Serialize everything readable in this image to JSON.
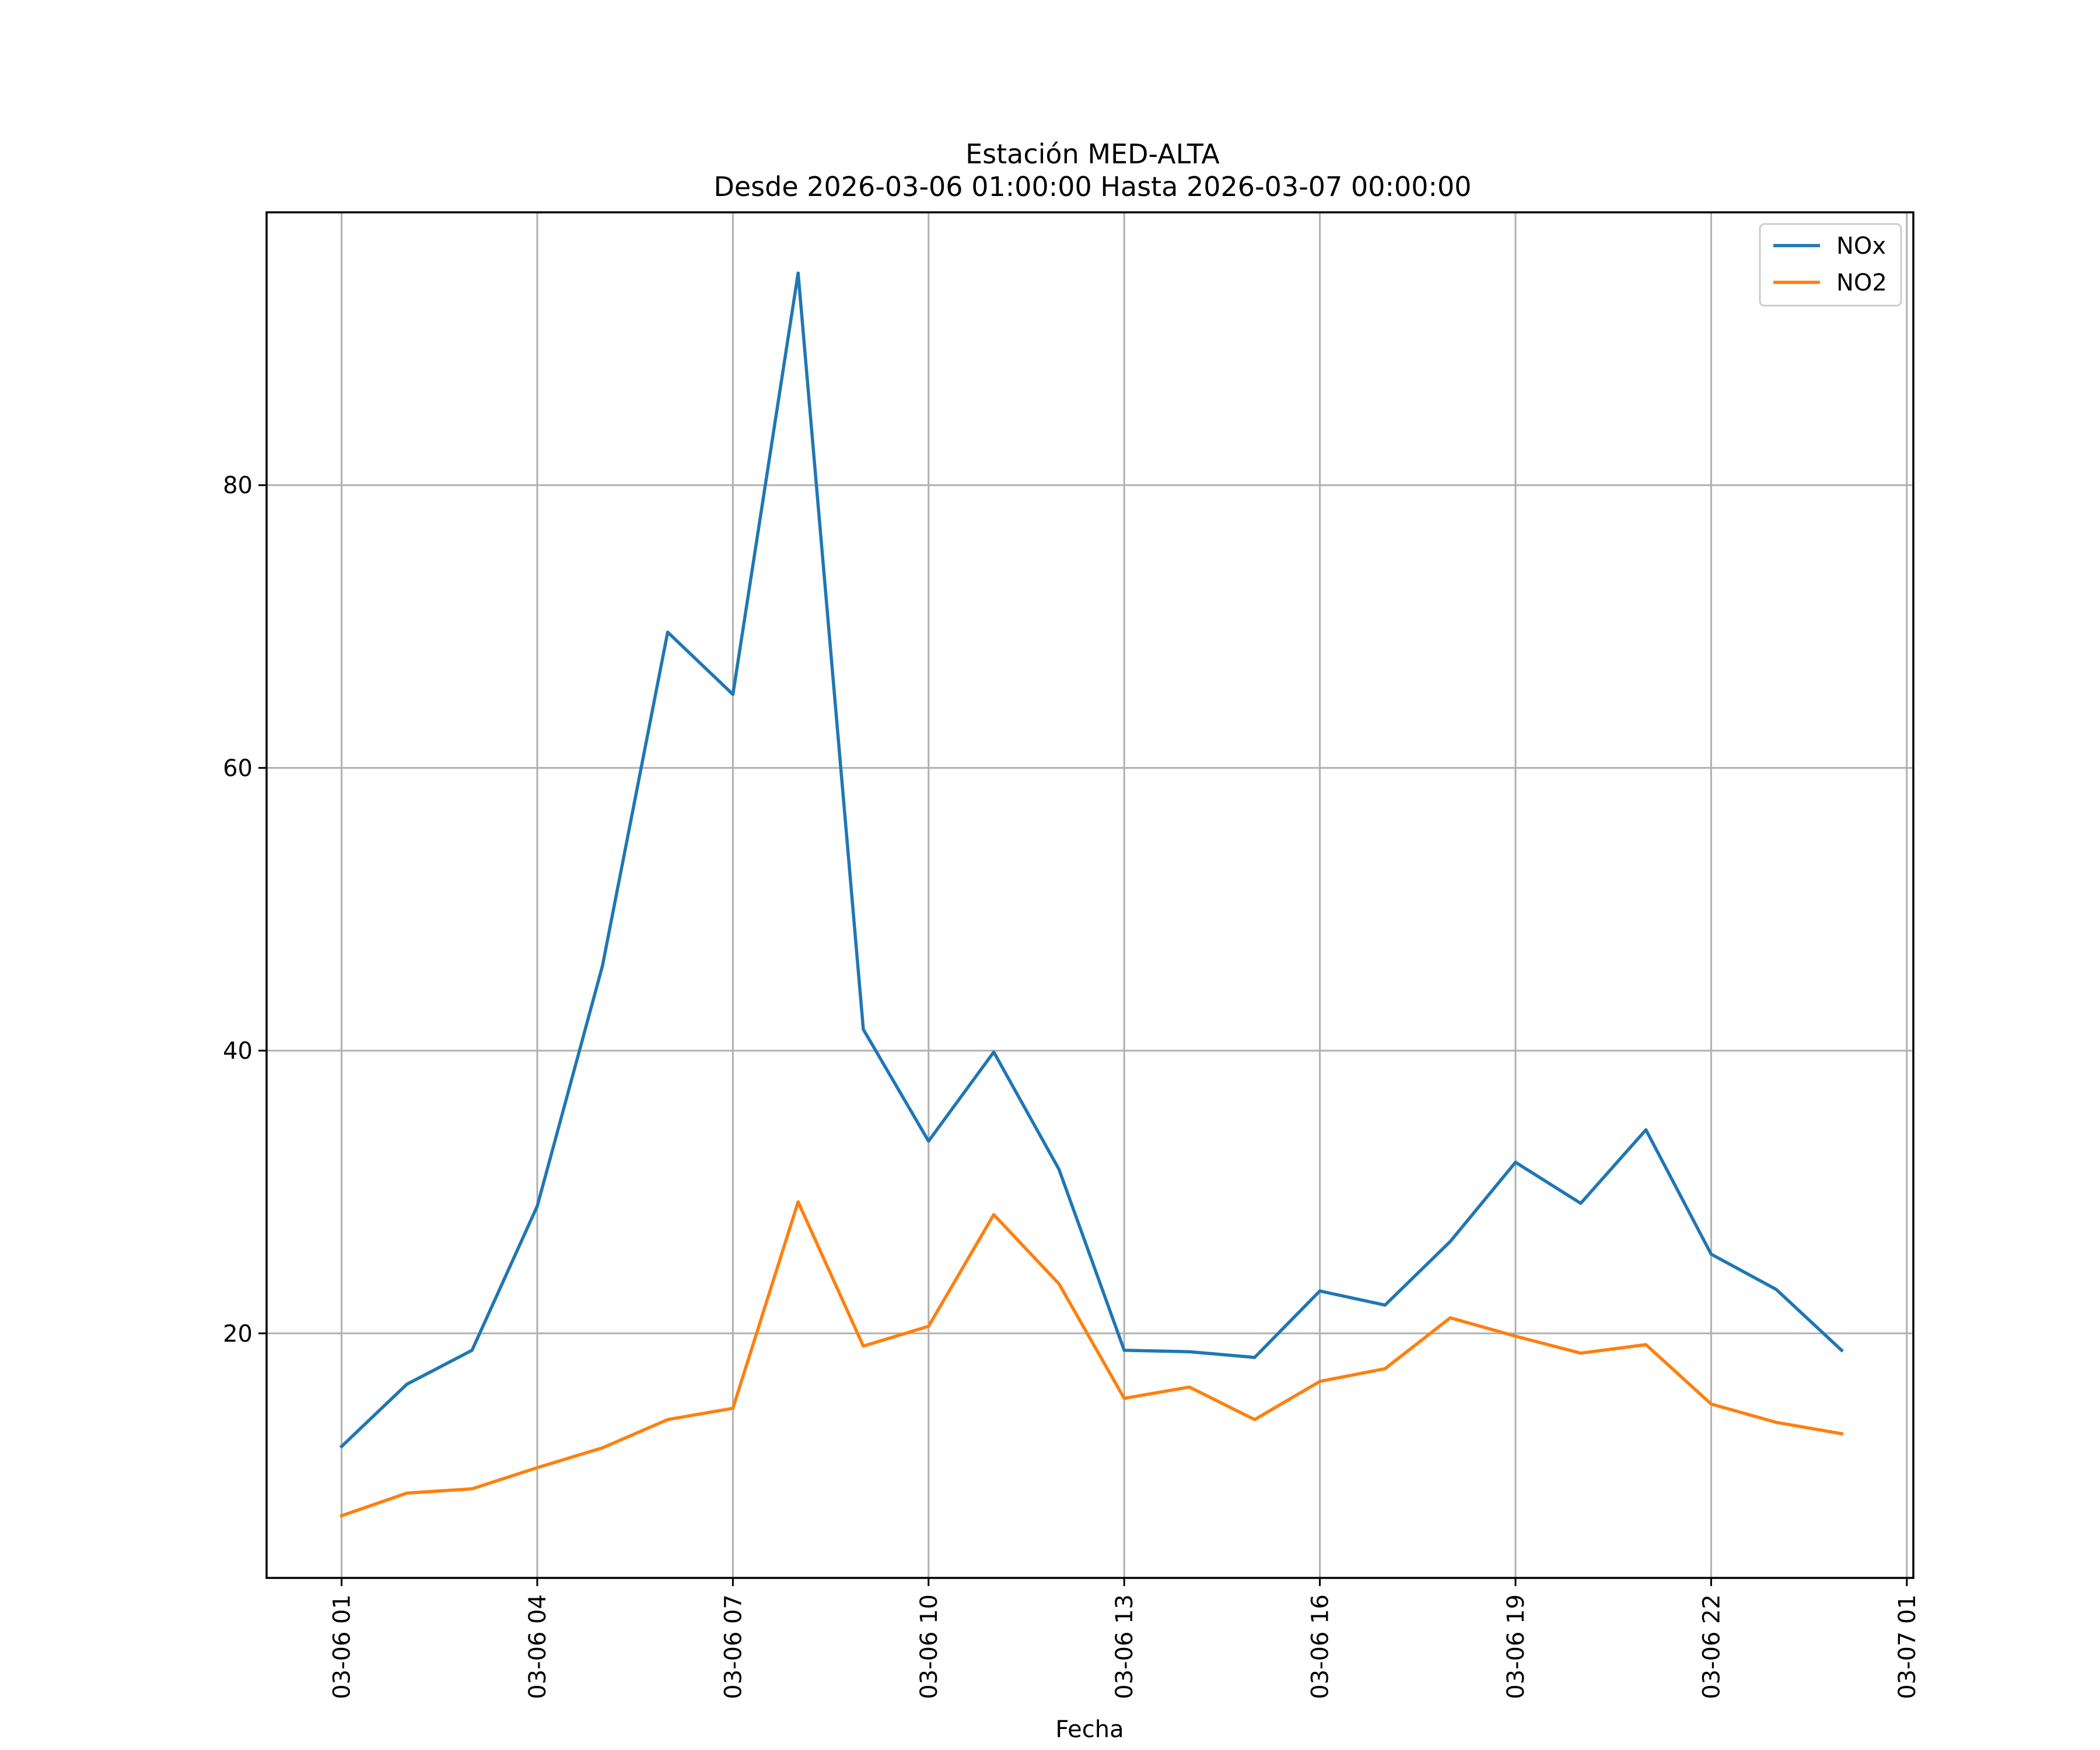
{
  "chart_data": {
    "type": "line",
    "title": "Estación MED-ALTA",
    "subtitle": "Desde 2026-03-06 01:00:00 Hasta 2026-03-07 00:00:00",
    "xlabel": "Fecha",
    "ylabel": "",
    "x": [
      "03-06 01",
      "03-06 02",
      "03-06 03",
      "03-06 04",
      "03-06 05",
      "03-06 06",
      "03-06 07",
      "03-06 08",
      "03-06 09",
      "03-06 10",
      "03-06 11",
      "03-06 12",
      "03-06 13",
      "03-06 14",
      "03-06 15",
      "03-06 16",
      "03-06 17",
      "03-06 18",
      "03-06 19",
      "03-06 20",
      "03-06 21",
      "03-06 22",
      "03-06 23",
      "03-07 00"
    ],
    "x_hours": [
      1,
      2,
      3,
      4,
      5,
      6,
      7,
      8,
      9,
      10,
      11,
      12,
      13,
      14,
      15,
      16,
      17,
      18,
      19,
      20,
      21,
      22,
      23,
      24
    ],
    "xlim": [
      -0.15,
      25.1
    ],
    "xticks": [
      {
        "hour": 1,
        "label": "03-06 01"
      },
      {
        "hour": 4,
        "label": "03-06 04"
      },
      {
        "hour": 7,
        "label": "03-06 07"
      },
      {
        "hour": 10,
        "label": "03-06 10"
      },
      {
        "hour": 13,
        "label": "03-06 13"
      },
      {
        "hour": 16,
        "label": "03-06 16"
      },
      {
        "hour": 19,
        "label": "03-06 19"
      },
      {
        "hour": 22,
        "label": "03-06 22"
      },
      {
        "hour": 25,
        "label": "03-07 01"
      }
    ],
    "yticks": [
      20,
      40,
      60,
      80
    ],
    "ylim": [
      2.7,
      99.3
    ],
    "grid": true,
    "legend_position": "top-right",
    "series": [
      {
        "name": "NOx",
        "color": "#1f77b4",
        "values": [
          12.0,
          16.4,
          18.8,
          29.0,
          46.0,
          69.6,
          65.2,
          95.0,
          41.5,
          33.6,
          39.9,
          31.6,
          18.8,
          18.7,
          18.3,
          23.0,
          22.0,
          26.5,
          32.1,
          29.2,
          34.4,
          25.6,
          23.1,
          18.8
        ]
      },
      {
        "name": "NO2",
        "color": "#ff7f0e",
        "values": [
          7.1,
          8.7,
          9.0,
          10.5,
          11.9,
          13.9,
          14.7,
          29.3,
          19.1,
          20.5,
          28.4,
          23.5,
          15.4,
          16.2,
          13.9,
          16.6,
          17.5,
          21.1,
          19.8,
          18.6,
          19.2,
          15.0,
          13.7,
          12.9
        ]
      }
    ]
  }
}
